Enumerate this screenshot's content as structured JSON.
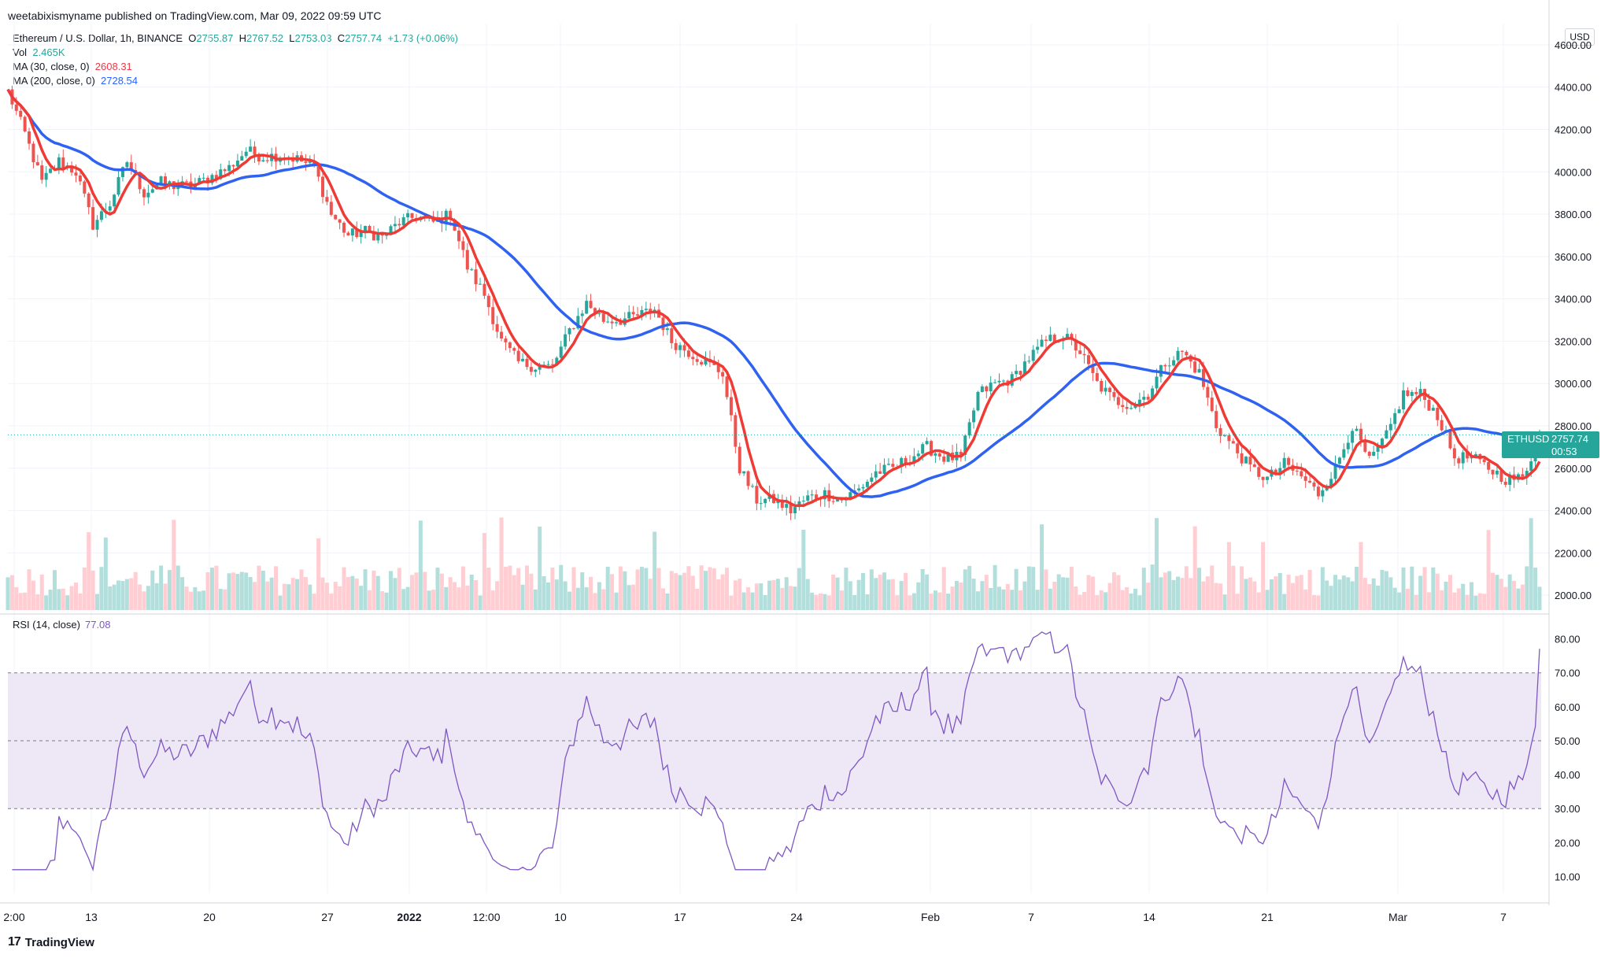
{
  "publisher": "weetabixismyname published on TradingView.com, Mar 09, 2022 09:59 UTC",
  "legend": {
    "symbol": "Ethereum / U.S. Dollar, 1h, BINANCE",
    "o_label": "O",
    "o_value": "2755.87",
    "h_label": "H",
    "h_value": "2767.52",
    "l_label": "L",
    "l_value": "2753.03",
    "c_label": "C",
    "c_value": "2757.74",
    "change": "+1.73 (+0.06%)",
    "vol_label": "Vol",
    "vol_value": "2.465K",
    "ma30_label": "MA (30, close, 0)",
    "ma30_value": "2608.31",
    "ma200_label": "MA (200, close, 0)",
    "ma200_value": "2728.54"
  },
  "rsi": {
    "label": "RSI (14, close)",
    "value": "77.08"
  },
  "currency": "USD",
  "price_tag": {
    "symbol": "ETHUSD",
    "price": "2757.74",
    "countdown": "00:53"
  },
  "footer": {
    "brand": "TradingView",
    "mark": "17"
  },
  "colors": {
    "ma30": "#ef3b36",
    "ma200": "#2f62f0",
    "up": "#26a69a",
    "down": "#ef5350",
    "rsi": "#7e57c2",
    "rsi_band": "#ede7f6",
    "price_tag": "#26a69a"
  },
  "chart_data": [
    {
      "type": "line",
      "title": "Ethereum / U.S. Dollar, 1h, BINANCE",
      "x_axis": {
        "ticks": [
          "2:00",
          "13",
          "20",
          "27",
          "2022",
          "12:00",
          "10",
          "17",
          "24",
          "Feb",
          "7",
          "14",
          "21",
          "Mar",
          "7"
        ]
      },
      "y_axis": {
        "ticks": [
          2000,
          2200,
          2400,
          2600,
          2800,
          3000,
          3200,
          3400,
          3600,
          3800,
          4000,
          4200,
          4400,
          4600
        ],
        "range": [
          1930,
          4700
        ],
        "unit": "USD"
      },
      "grid": true,
      "series": [
        {
          "name": "ETHUSD",
          "x": [
            "Dec 09",
            "Dec 10",
            "Dec 11",
            "Dec 12",
            "Dec 13",
            "Dec 14",
            "Dec 15",
            "Dec 16",
            "Dec 17",
            "Dec 18",
            "Dec 19",
            "Dec 20",
            "Dec 21",
            "Dec 22",
            "Dec 23",
            "Dec 24",
            "Dec 25",
            "Dec 26",
            "Dec 27",
            "Dec 28",
            "Dec 29",
            "Dec 30",
            "Dec 31",
            "Jan 01",
            "Jan 02",
            "Jan 03",
            "Jan 04",
            "Jan 05",
            "Jan 06",
            "Jan 07",
            "Jan 08",
            "Jan 09",
            "Jan 10",
            "Jan 11",
            "Jan 12",
            "Jan 13",
            "Jan 14",
            "Jan 15",
            "Jan 16",
            "Jan 17",
            "Jan 18",
            "Jan 19",
            "Jan 20",
            "Jan 21",
            "Jan 22",
            "Jan 23",
            "Jan 24",
            "Jan 25",
            "Jan 26",
            "Jan 27",
            "Jan 28",
            "Jan 29",
            "Jan 30",
            "Jan 31",
            "Feb 01",
            "Feb 02",
            "Feb 03",
            "Feb 04",
            "Feb 05",
            "Feb 06",
            "Feb 07",
            "Feb 08",
            "Feb 09",
            "Feb 10",
            "Feb 11",
            "Feb 12",
            "Feb 13",
            "Feb 14",
            "Feb 15",
            "Feb 16",
            "Feb 17",
            "Feb 18",
            "Feb 19",
            "Feb 20",
            "Feb 21",
            "Feb 22",
            "Feb 23",
            "Feb 24",
            "Feb 25",
            "Feb 26",
            "Feb 27",
            "Feb 28",
            "Mar 01",
            "Mar 02",
            "Mar 03",
            "Mar 04",
            "Mar 05",
            "Mar 06",
            "Mar 07",
            "Mar 08",
            "Mar 09"
          ],
          "values": [
            4380,
            4180,
            3950,
            4050,
            4000,
            3750,
            3850,
            4050,
            3900,
            3950,
            3930,
            3940,
            3980,
            4020,
            4100,
            4070,
            4080,
            4060,
            4020,
            3800,
            3700,
            3720,
            3690,
            3760,
            3790,
            3760,
            3800,
            3550,
            3420,
            3200,
            3100,
            3080,
            3080,
            3250,
            3380,
            3300,
            3300,
            3320,
            3350,
            3200,
            3150,
            3100,
            3050,
            2600,
            2450,
            2450,
            2400,
            2460,
            2480,
            2450,
            2500,
            2580,
            2600,
            2650,
            2700,
            2650,
            2650,
            2950,
            3000,
            3020,
            3120,
            3200,
            3230,
            3150,
            3000,
            2920,
            2900,
            2950,
            3100,
            3150,
            3050,
            2800,
            2700,
            2600,
            2550,
            2620,
            2560,
            2480,
            2600,
            2800,
            2630,
            2750,
            2950,
            2950,
            2850,
            2650,
            2650,
            2600,
            2550,
            2550,
            2757
          ]
        },
        {
          "name": "MA (30, close, 0)",
          "value": 2608.31
        },
        {
          "name": "MA (200, close, 0)",
          "value": 2728.54
        }
      ],
      "last_price": 2757.74,
      "volume_last": "2.465K"
    },
    {
      "type": "line",
      "title": "RSI (14, close)",
      "y_axis": {
        "ticks": [
          10,
          20,
          30,
          40,
          50,
          60,
          70,
          80
        ],
        "range": [
          5,
          85
        ]
      },
      "bands": [
        30,
        50,
        70
      ],
      "series": [
        {
          "name": "RSI (14, close)",
          "last": 77.08
        }
      ]
    }
  ]
}
